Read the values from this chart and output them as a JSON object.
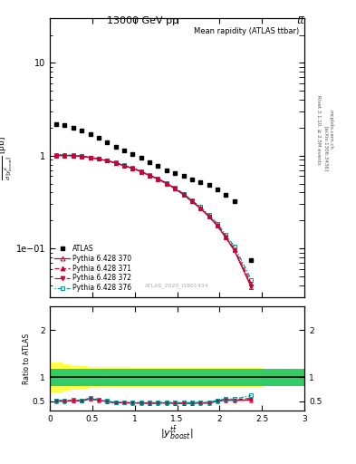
{
  "title_top": "13000 GeV pp",
  "title_top_right": "tt̅",
  "subtitle": "Mean rapidity (ATLAS ttbar)",
  "watermark": "ATLAS_2020_I1801434",
  "right_label_top": "Rivet 3.1.10, ≥ 2.5M events",
  "right_label_mid": "[arXiv:1306.3436]",
  "right_label_bot": "mcplots.cern.ch",
  "atlas_x": [
    0.075,
    0.175,
    0.275,
    0.375,
    0.475,
    0.575,
    0.675,
    0.775,
    0.875,
    0.975,
    1.075,
    1.175,
    1.275,
    1.375,
    1.475,
    1.575,
    1.675,
    1.775,
    1.875,
    1.975,
    2.075,
    2.175,
    2.375
  ],
  "atlas_y": [
    2.2,
    2.15,
    2.0,
    1.85,
    1.7,
    1.55,
    1.4,
    1.25,
    1.15,
    1.05,
    0.95,
    0.85,
    0.78,
    0.7,
    0.65,
    0.6,
    0.56,
    0.52,
    0.48,
    0.43,
    0.38,
    0.32,
    0.075
  ],
  "py370_x": [
    0.075,
    0.175,
    0.275,
    0.375,
    0.475,
    0.575,
    0.675,
    0.775,
    0.875,
    0.975,
    1.075,
    1.175,
    1.275,
    1.375,
    1.475,
    1.575,
    1.675,
    1.775,
    1.875,
    1.975,
    2.075,
    2.175,
    2.375
  ],
  "py370_y": [
    1.0,
    1.0,
    1.0,
    0.98,
    0.95,
    0.92,
    0.88,
    0.83,
    0.78,
    0.73,
    0.67,
    0.61,
    0.56,
    0.5,
    0.44,
    0.38,
    0.32,
    0.27,
    0.22,
    0.175,
    0.13,
    0.095,
    0.038
  ],
  "py371_x": [
    0.075,
    0.175,
    0.275,
    0.375,
    0.475,
    0.575,
    0.675,
    0.775,
    0.875,
    0.975,
    1.075,
    1.175,
    1.275,
    1.375,
    1.475,
    1.575,
    1.675,
    1.775,
    1.875,
    1.975,
    2.075,
    2.175,
    2.375
  ],
  "py371_y": [
    1.01,
    1.01,
    1.0,
    0.985,
    0.955,
    0.925,
    0.885,
    0.835,
    0.783,
    0.733,
    0.673,
    0.613,
    0.563,
    0.503,
    0.443,
    0.383,
    0.323,
    0.273,
    0.223,
    0.178,
    0.133,
    0.098,
    0.042
  ],
  "py372_x": [
    0.075,
    0.175,
    0.275,
    0.375,
    0.475,
    0.575,
    0.675,
    0.775,
    0.875,
    0.975,
    1.075,
    1.175,
    1.275,
    1.375,
    1.475,
    1.575,
    1.675,
    1.775,
    1.875,
    1.975,
    2.075,
    2.175,
    2.375
  ],
  "py372_y": [
    1.005,
    1.005,
    1.0,
    0.982,
    0.952,
    0.922,
    0.882,
    0.832,
    0.78,
    0.73,
    0.67,
    0.61,
    0.56,
    0.5,
    0.44,
    0.38,
    0.32,
    0.27,
    0.22,
    0.176,
    0.131,
    0.096,
    0.039
  ],
  "py376_x": [
    0.075,
    0.175,
    0.275,
    0.375,
    0.475,
    0.575,
    0.675,
    0.775,
    0.875,
    0.975,
    1.075,
    1.175,
    1.275,
    1.375,
    1.475,
    1.575,
    1.675,
    1.775,
    1.875,
    1.975,
    2.075,
    2.175,
    2.375
  ],
  "py376_y": [
    1.02,
    1.02,
    1.01,
    0.99,
    0.96,
    0.93,
    0.89,
    0.84,
    0.79,
    0.74,
    0.68,
    0.62,
    0.57,
    0.51,
    0.45,
    0.39,
    0.33,
    0.28,
    0.23,
    0.185,
    0.14,
    0.105,
    0.046
  ],
  "ratio_x": [
    0.075,
    0.175,
    0.275,
    0.375,
    0.475,
    0.575,
    0.675,
    0.775,
    0.875,
    0.975,
    1.075,
    1.175,
    1.275,
    1.375,
    1.475,
    1.575,
    1.675,
    1.775,
    1.875,
    1.975,
    2.075,
    2.175,
    2.375
  ],
  "ratio370_y": [
    0.5,
    0.495,
    0.51,
    0.505,
    0.545,
    0.52,
    0.49,
    0.465,
    0.465,
    0.46,
    0.46,
    0.455,
    0.46,
    0.46,
    0.455,
    0.455,
    0.455,
    0.46,
    0.46,
    0.5,
    0.52,
    0.515,
    0.52
  ],
  "ratio371_y": [
    0.51,
    0.505,
    0.515,
    0.51,
    0.555,
    0.525,
    0.495,
    0.47,
    0.47,
    0.465,
    0.465,
    0.46,
    0.465,
    0.465,
    0.46,
    0.46,
    0.46,
    0.465,
    0.465,
    0.51,
    0.535,
    0.53,
    0.56
  ],
  "ratio372_y": [
    0.505,
    0.5,
    0.512,
    0.507,
    0.55,
    0.522,
    0.492,
    0.467,
    0.467,
    0.462,
    0.462,
    0.457,
    0.462,
    0.462,
    0.457,
    0.457,
    0.457,
    0.462,
    0.462,
    0.505,
    0.525,
    0.52,
    0.535
  ],
  "ratio376_y": [
    0.52,
    0.515,
    0.525,
    0.52,
    0.565,
    0.535,
    0.505,
    0.48,
    0.48,
    0.475,
    0.475,
    0.47,
    0.475,
    0.475,
    0.47,
    0.47,
    0.47,
    0.475,
    0.475,
    0.52,
    0.545,
    0.545,
    0.62
  ],
  "band_green_lo": 0.82,
  "band_green_hi": 1.18,
  "band_yellow_step_x": [
    0.0,
    0.1,
    0.15,
    0.25,
    0.35,
    0.45,
    0.55,
    0.65,
    0.75,
    0.85,
    0.95,
    1.05,
    1.15,
    1.25,
    1.35,
    1.45,
    1.55,
    1.65,
    1.75,
    1.85,
    1.95,
    2.05,
    2.15,
    2.5
  ],
  "band_yellow_lo": [
    0.68,
    0.68,
    0.72,
    0.75,
    0.77,
    0.78,
    0.79,
    0.79,
    0.79,
    0.79,
    0.8,
    0.8,
    0.8,
    0.8,
    0.8,
    0.8,
    0.8,
    0.8,
    0.8,
    0.8,
    0.8,
    0.8,
    0.8,
    0.8
  ],
  "band_yellow_hi": [
    1.32,
    1.32,
    1.28,
    1.25,
    1.23,
    1.22,
    1.21,
    1.21,
    1.21,
    1.21,
    1.2,
    1.2,
    1.2,
    1.2,
    1.2,
    1.2,
    1.2,
    1.2,
    1.2,
    1.2,
    1.2,
    1.2,
    1.2,
    1.2
  ],
  "color_py370": "#cc0033",
  "color_py371": "#cc0033",
  "color_py372": "#cc0033",
  "color_py376": "#009999",
  "color_atlas": "#000000",
  "color_green": "#33cc66",
  "color_yellow": "#ffff44",
  "xlim": [
    0,
    3
  ],
  "ylim_main": [
    0.03,
    30
  ],
  "ylim_ratio": [
    0.3,
    2.5
  ],
  "yticks_main": [
    0.1,
    1,
    10
  ],
  "yticks_ratio": [
    0.5,
    1.0,
    2.0
  ],
  "xticks": [
    0,
    0.5,
    1.0,
    1.5,
    2.0,
    2.5,
    3.0
  ]
}
